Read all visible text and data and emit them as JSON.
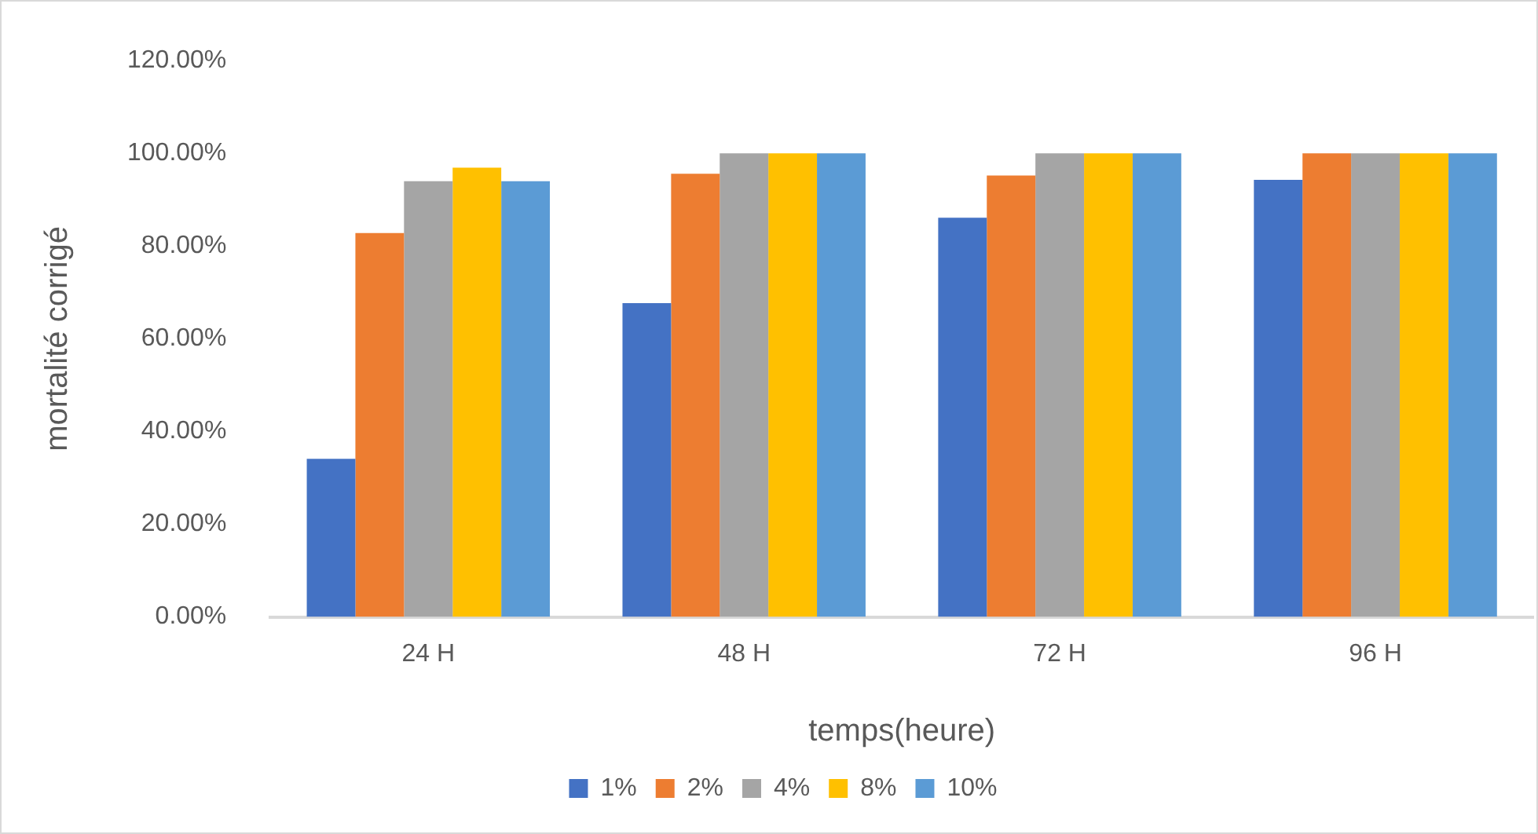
{
  "chart_data": {
    "type": "bar",
    "xlabel": "temps(heure)",
    "ylabel": "mortalité corrigé",
    "categories": [
      "24 H",
      "48 H",
      "72 H",
      "96 H"
    ],
    "series": [
      {
        "name": "1%",
        "color": "#4472c4",
        "values": [
          34.1,
          67.7,
          86.1,
          94.3
        ]
      },
      {
        "name": "2%",
        "color": "#ed7d31",
        "values": [
          82.8,
          95.6,
          95.2,
          100
        ]
      },
      {
        "name": "4%",
        "color": "#a5a5a5",
        "values": [
          94,
          100,
          100,
          100
        ]
      },
      {
        "name": "8%",
        "color": "#ffc000",
        "values": [
          96.9,
          100,
          100,
          100
        ]
      },
      {
        "name": "10%",
        "color": "#5b9bd5",
        "values": [
          94,
          100,
          100,
          100
        ]
      }
    ],
    "ylim": [
      0,
      120
    ],
    "yticks": [
      {
        "value": 0,
        "label": "0.00%"
      },
      {
        "value": 20,
        "label": "20.00%"
      },
      {
        "value": 40,
        "label": "40.00%"
      },
      {
        "value": 60,
        "label": "60.00%"
      },
      {
        "value": 80,
        "label": "80.00%"
      },
      {
        "value": 100,
        "label": "100.00%"
      },
      {
        "value": 120,
        "label": "120.00%"
      }
    ],
    "grid": false,
    "legend": "bottom"
  }
}
